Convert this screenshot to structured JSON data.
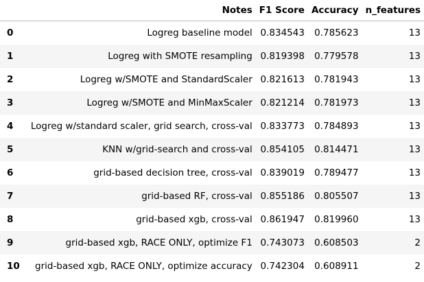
{
  "table": {
    "index_header": "",
    "columns": [
      "Notes",
      "F1 Score",
      "Accuracy",
      "n_features"
    ],
    "rows": [
      {
        "index": "0",
        "notes": "Logreg baseline model",
        "f1": "0.834543",
        "accuracy": "0.785623",
        "n_features": "13"
      },
      {
        "index": "1",
        "notes": "Logreg with SMOTE resampling",
        "f1": "0.819398",
        "accuracy": "0.779578",
        "n_features": "13"
      },
      {
        "index": "2",
        "notes": "Logreg w/SMOTE and StandardScaler",
        "f1": "0.821613",
        "accuracy": "0.781943",
        "n_features": "13"
      },
      {
        "index": "3",
        "notes": "Logreg w/SMOTE and MinMaxScaler",
        "f1": "0.821214",
        "accuracy": "0.781973",
        "n_features": "13"
      },
      {
        "index": "4",
        "notes": "Logreg w/standard scaler, grid search, cross-val",
        "f1": "0.833773",
        "accuracy": "0.784893",
        "n_features": "13"
      },
      {
        "index": "5",
        "notes": "KNN w/grid-search and cross-val",
        "f1": "0.854105",
        "accuracy": "0.814471",
        "n_features": "13"
      },
      {
        "index": "6",
        "notes": "grid-based decision tree, cross-val",
        "f1": "0.839019",
        "accuracy": "0.789477",
        "n_features": "13"
      },
      {
        "index": "7",
        "notes": "grid-based RF, cross-val",
        "f1": "0.855186",
        "accuracy": "0.805507",
        "n_features": "13"
      },
      {
        "index": "8",
        "notes": "grid-based xgb, cross-val",
        "f1": "0.861947",
        "accuracy": "0.819960",
        "n_features": "13"
      },
      {
        "index": "9",
        "notes": "grid-based xgb, RACE ONLY, optimize F1",
        "f1": "0.743073",
        "accuracy": "0.608503",
        "n_features": "2"
      },
      {
        "index": "10",
        "notes": "grid-based xgb, RACE ONLY, optimize accuracy",
        "f1": "0.742304",
        "accuracy": "0.608911",
        "n_features": "2"
      }
    ]
  }
}
